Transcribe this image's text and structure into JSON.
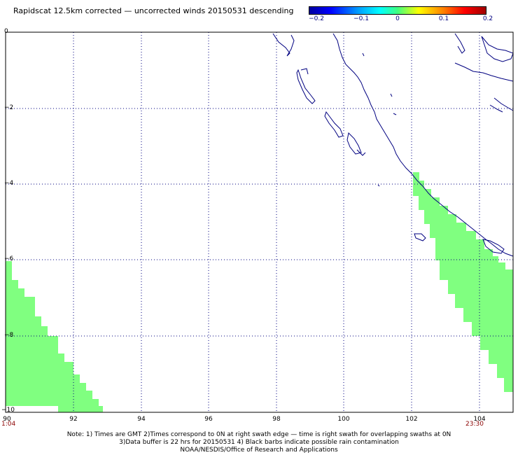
{
  "title": "Rapidscat 12.5km corrected — uncorrected winds 20150531 descending",
  "colorbar": {
    "ticks": [
      "−0.2",
      "−0.1",
      "0",
      "0.1",
      "0.2"
    ],
    "colors": [
      "#0000a0",
      "#0000ff",
      "#00ffff",
      "#40ff80",
      "#ffff00",
      "#ff0000",
      "#a00000"
    ]
  },
  "map": {
    "y_labels": [
      "0",
      "−2",
      "−4",
      "−6",
      "−8",
      "−10"
    ],
    "x_labels": [
      "90",
      "92",
      "94",
      "96",
      "98",
      "100",
      "102",
      "104"
    ],
    "lat_range": [
      -10,
      0
    ],
    "lon_range": [
      90,
      105
    ],
    "swath_color": "#80ff80",
    "grid": "dotted",
    "time_left": "1:04",
    "time_right": "23:30"
  },
  "notes": {
    "line1": "Note: 1) Times are GMT 2)Times correspond to 0N at right swath edge — time is right swath for overlapping swaths at 0N",
    "line2": "3)Data buffer is 22 hrs for 20150531 4) Black barbs indicate possible rain contamination",
    "line3": "NOAA/NESDIS/Office of Research and Applications"
  }
}
